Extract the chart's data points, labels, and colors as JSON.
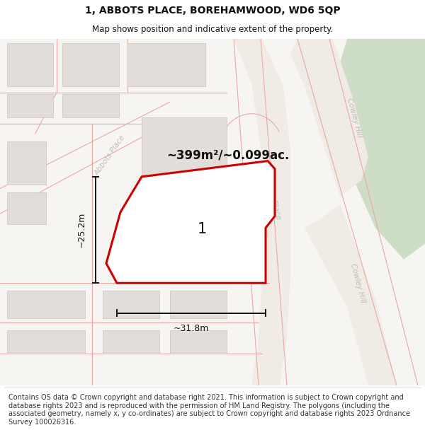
{
  "title": "1, ABBOTS PLACE, BOREHAMWOOD, WD6 5QP",
  "subtitle": "Map shows position and indicative extent of the property.",
  "footer": "Contains OS data © Crown copyright and database right 2021. This information is subject to Crown copyright and database rights 2023 and is reproduced with the permission of HM Land Registry. The polygons (including the associated geometry, namely x, y co-ordinates) are subject to Crown copyright and database rights 2023 Ordnance Survey 100026316.",
  "area_label": "~399m²/~0.099ac.",
  "property_number": "1",
  "dim_width": "~31.8m",
  "dim_height": "~25.2m",
  "map_bg": "#f7f5f2",
  "plot_fill": "#ffffff",
  "plot_edge": "#cc0000",
  "building_fill": "#e2ddd8",
  "building_stroke": "#ccc5bc",
  "green_fill": "#cdddc8",
  "road_color": "#f0ebe4",
  "road_line_color": "#e8a8a8",
  "title_fontsize": 10,
  "subtitle_fontsize": 8.5,
  "footer_fontsize": 7.0,
  "area_fontsize": 12,
  "number_fontsize": 15,
  "dim_fontsize": 9
}
